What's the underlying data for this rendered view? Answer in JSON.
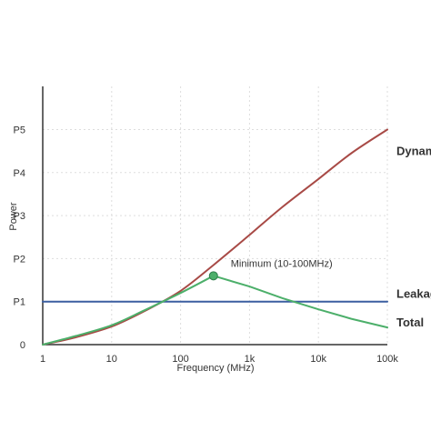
{
  "chart_data": {
    "type": "line",
    "title": "",
    "xlabel": "Frequency (MHz)",
    "ylabel": "Power",
    "x_scale": "log",
    "xlim": [
      1,
      100000
    ],
    "ylim": [
      0,
      6
    ],
    "grid": true,
    "x_ticks": [
      {
        "value": 1,
        "label": "1"
      },
      {
        "value": 10,
        "label": "10"
      },
      {
        "value": 100,
        "label": "100"
      },
      {
        "value": 1000,
        "label": "1k"
      },
      {
        "value": 10000,
        "label": "10k"
      },
      {
        "value": 100000,
        "label": "100k"
      }
    ],
    "y_ticks": [
      {
        "value": 0,
        "label": "0"
      },
      {
        "value": 1,
        "label": "P1"
      },
      {
        "value": 2,
        "label": "P2"
      },
      {
        "value": 3,
        "label": "P3"
      },
      {
        "value": 4,
        "label": "P4"
      },
      {
        "value": 5,
        "label": "P5"
      }
    ],
    "series": [
      {
        "name": "Dynamic",
        "color": "#a84a46",
        "x": [
          1,
          3,
          10,
          30,
          100,
          300,
          1000,
          3000,
          10000,
          30000,
          100000
        ],
        "y": [
          0,
          0.17,
          0.42,
          0.78,
          1.25,
          1.85,
          2.55,
          3.2,
          3.85,
          4.45,
          5.0
        ]
      },
      {
        "name": "Leakage",
        "color": "#3b5fa0",
        "x": [
          1,
          100000
        ],
        "y": [
          1,
          1
        ]
      },
      {
        "name": "Total",
        "color": "#4caf6a",
        "x": [
          1,
          3,
          10,
          30,
          100,
          300,
          1000,
          3000,
          10000,
          30000,
          100000
        ],
        "y": [
          0,
          0.2,
          0.45,
          0.8,
          1.2,
          1.6,
          1.35,
          1.08,
          0.82,
          0.6,
          0.4
        ]
      }
    ],
    "annotations": [
      {
        "text": "Minimum (10-100MHz)",
        "x": 300,
        "y": 1.6,
        "marker_color": "#4caf6a"
      }
    ]
  }
}
